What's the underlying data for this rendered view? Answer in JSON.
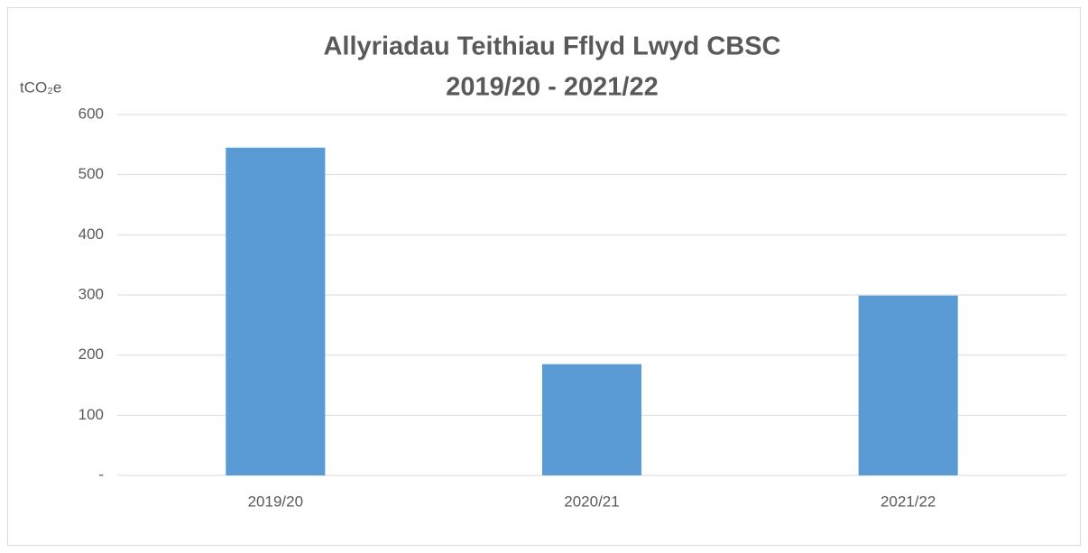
{
  "chart_data": {
    "type": "bar",
    "title": [
      "Allyriadau Teithiau Fflyd Lwyd CBSC",
      "2019/20 - 2021/22"
    ],
    "y_label": "tCO₂e",
    "categories": [
      "2019/20",
      "2020/21",
      "2021/22"
    ],
    "values": [
      545,
      185,
      299
    ],
    "color": "#5b9bd5",
    "ylim": [
      0,
      600
    ],
    "yticks": [
      {
        "value": 0,
        "label": "-"
      },
      100,
      200,
      300,
      400,
      500,
      600
    ],
    "grid": true
  }
}
